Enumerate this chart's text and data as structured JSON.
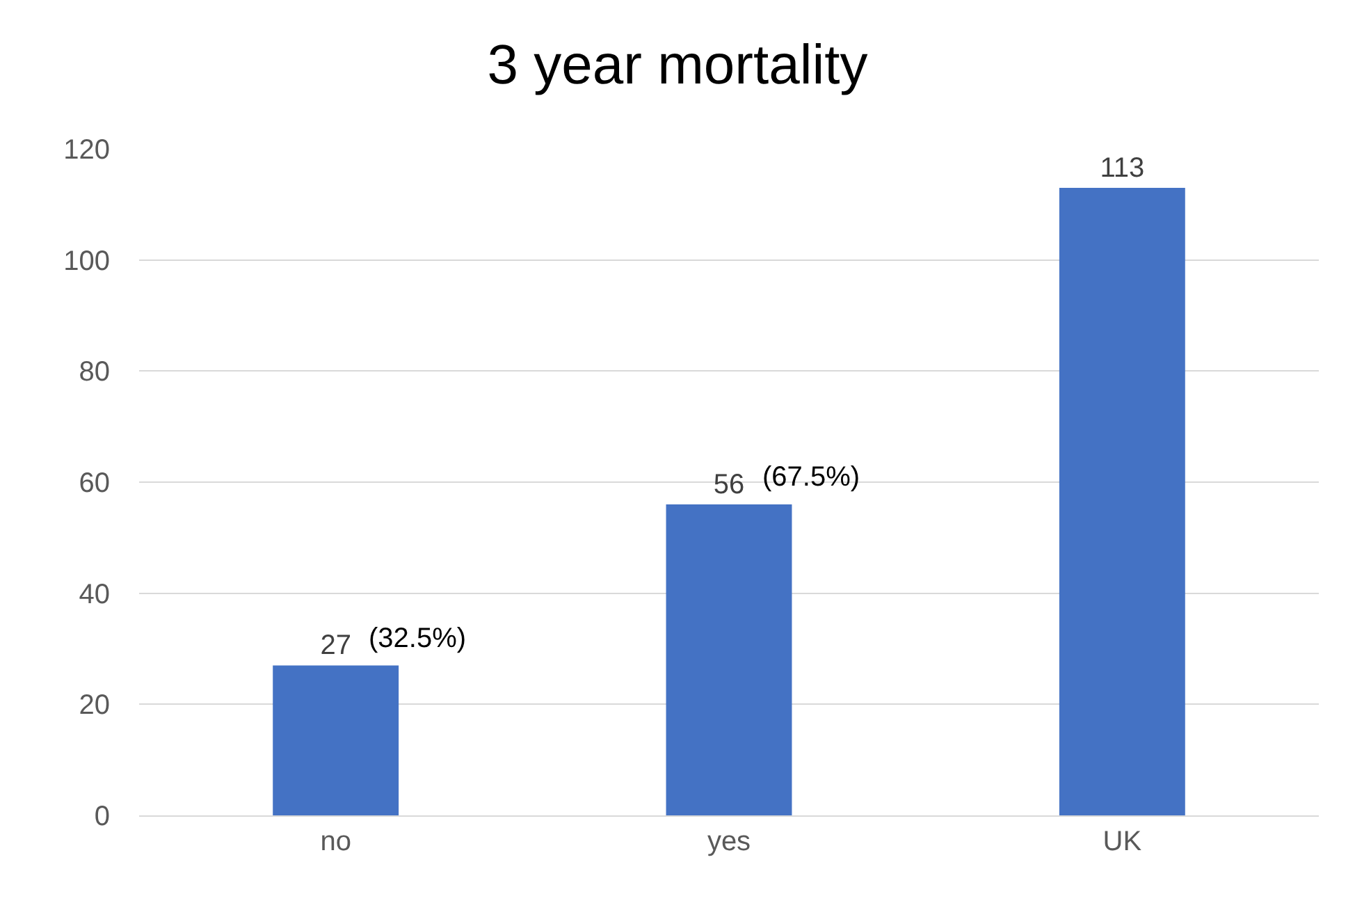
{
  "chart_data": {
    "type": "bar",
    "title": "3 year mortality",
    "categories": [
      "no",
      "yes",
      "UK"
    ],
    "values": [
      27,
      56,
      113
    ],
    "color": "#4472c4",
    "ylim": [
      0,
      120
    ],
    "yticks": [
      0,
      20,
      40,
      60,
      80,
      100,
      120
    ],
    "grid": "y",
    "legend": false,
    "data_labels": true,
    "annotations": [
      {
        "text": "(32.5%)",
        "x": "no",
        "y": 27
      },
      {
        "text": "(67.5%)",
        "x": "yes",
        "y": 56
      }
    ]
  }
}
